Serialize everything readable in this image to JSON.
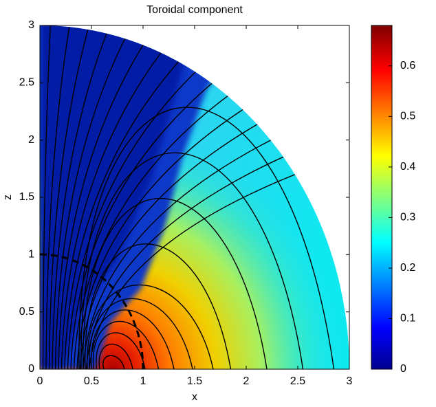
{
  "chart_data": {
    "type": "contour",
    "title": "Toroidal component",
    "xlabel": "x",
    "ylabel": "z",
    "xlim": [
      0,
      3
    ],
    "ylim": [
      0,
      3
    ],
    "xticks": [
      0,
      0.5,
      1,
      1.5,
      2,
      2.5,
      3
    ],
    "yticks": [
      0,
      0.5,
      1,
      1.5,
      2,
      2.5,
      3
    ],
    "colorbar": {
      "lim": [
        0,
        0.68
      ],
      "ticks": [
        0,
        0.1,
        0.2,
        0.3,
        0.4,
        0.5,
        0.6
      ],
      "colormap": "jet"
    }
  }
}
